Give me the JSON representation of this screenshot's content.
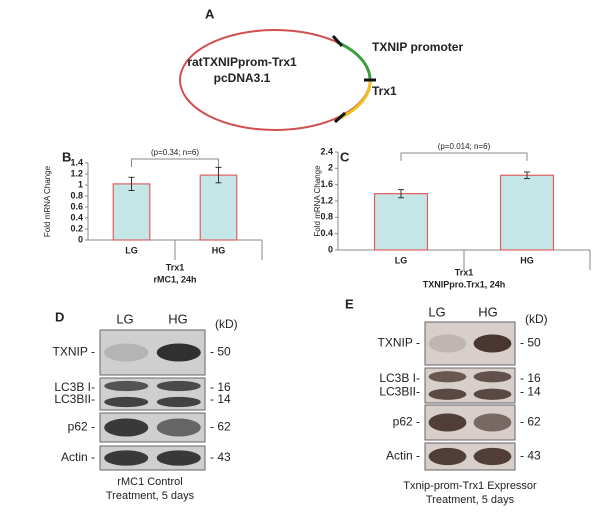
{
  "panels": [
    "A",
    "B",
    "C",
    "D",
    "E"
  ],
  "plasmid": {
    "name": "ratTXNIPprom-Trx1",
    "vector": "pcDNA3.1",
    "labels": [
      "TXNIP promoter",
      "Trx1"
    ]
  },
  "chart_data": [
    {
      "type": "bar",
      "categories": [
        "LG",
        "HG"
      ],
      "values": [
        1.02,
        1.18
      ],
      "errors": [
        0.12,
        0.14
      ],
      "color": "#c4e6e6",
      "edge_color": "#e06060",
      "ylabel": "Fold mRNA Change",
      "xlabel": [
        "Trx1",
        "rMC1, 24h"
      ],
      "annotation": "(p=0.34; n=6)",
      "ylim": [
        0,
        1.4
      ],
      "yticks": [
        0,
        0.2,
        0.4,
        0.6,
        0.8,
        1,
        1.2,
        1.4
      ],
      "grid": false
    },
    {
      "type": "bar",
      "categories": [
        "LG",
        "HG"
      ],
      "values": [
        1.38,
        1.83
      ],
      "errors": [
        0.1,
        0.08
      ],
      "color": "#c4e6e6",
      "edge_color": "#e06060",
      "ylabel": "Fold mRNA Change",
      "xlabel": [
        "Trx1",
        "TXNIPpro.Trx1, 24h"
      ],
      "annotation": "(p=0.014; n=6)",
      "ylim": [
        0,
        2.4
      ],
      "yticks": [
        0,
        0.4,
        0.8,
        1.2,
        1.6,
        2,
        2.4
      ],
      "grid": false
    }
  ],
  "blots": [
    {
      "lanes": [
        "LG",
        "HG"
      ],
      "unit": "(kD)",
      "rows": [
        {
          "labels": [
            "TXNIP -"
          ],
          "sizes": [
            "- 50"
          ]
        },
        {
          "labels": [
            "LC3B I-",
            "LC3BII-"
          ],
          "sizes": [
            "- 16",
            "- 14"
          ]
        },
        {
          "labels": [
            "p62 -"
          ],
          "sizes": [
            "- 62"
          ]
        },
        {
          "labels": [
            "Actin -"
          ],
          "sizes": [
            "- 43"
          ]
        }
      ],
      "caption": [
        "rMC1 Control",
        "Treatment, 5 days"
      ]
    },
    {
      "lanes": [
        "LG",
        "HG"
      ],
      "unit": "(kD)",
      "rows": [
        {
          "labels": [
            "TXNIP -"
          ],
          "sizes": [
            "- 50"
          ]
        },
        {
          "labels": [
            "LC3B I-",
            "LC3BII-"
          ],
          "sizes": [
            "- 16",
            "- 14"
          ]
        },
        {
          "labels": [
            "p62 -"
          ],
          "sizes": [
            "- 62"
          ]
        },
        {
          "labels": [
            "Actin -"
          ],
          "sizes": [
            "- 43"
          ]
        }
      ],
      "caption": [
        "Txnip-prom-Trx1 Expressor",
        "Treatment, 5 days"
      ]
    }
  ]
}
